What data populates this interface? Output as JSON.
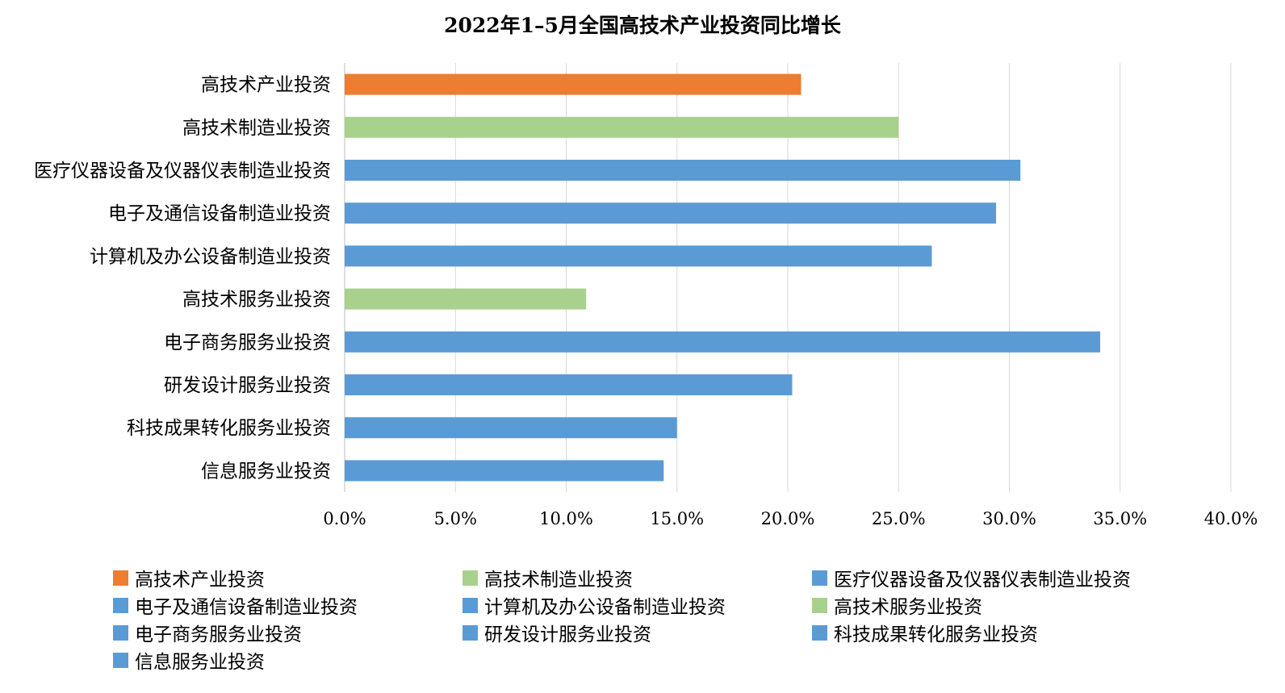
{
  "chart_data": {
    "type": "bar",
    "orientation": "horizontal",
    "title": "2022年1–5月全国高技术产业投资同比增长",
    "categories": [
      "高技术产业投资",
      "高技术制造业投资",
      "医疗仪器设备及仪器仪表制造业投资",
      "电子及通信设备制造业投资",
      "计算机及办公设备制造业投资",
      "高技术服务业投资",
      "电子商务服务业投资",
      "研发设计服务业投资",
      "科技成果转化服务业投资",
      "信息服务业投资"
    ],
    "values": [
      20.6,
      25.0,
      30.5,
      29.4,
      26.5,
      10.9,
      34.1,
      20.2,
      15.0,
      14.4
    ],
    "unit": "%",
    "colors": [
      "#ED7D31",
      "#A9D18E",
      "#5B9BD5",
      "#5B9BD5",
      "#5B9BD5",
      "#A9D18E",
      "#5B9BD5",
      "#5B9BD5",
      "#5B9BD5",
      "#5B9BD5"
    ],
    "xlim": [
      0,
      40
    ],
    "xticks": [
      "0.0%",
      "5.0%",
      "10.0%",
      "15.0%",
      "20.0%",
      "25.0%",
      "30.0%",
      "35.0%",
      "40.0%"
    ],
    "grid": "vertical",
    "legend_position": "bottom",
    "legend": [
      {
        "label": "高技术产业投资",
        "color": "#ED7D31"
      },
      {
        "label": "高技术制造业投资",
        "color": "#A9D18E"
      },
      {
        "label": "医疗仪器设备及仪器仪表制造业投资",
        "color": "#5B9BD5"
      },
      {
        "label": "电子及通信设备制造业投资",
        "color": "#5B9BD5"
      },
      {
        "label": "计算机及办公设备制造业投资",
        "color": "#5B9BD5"
      },
      {
        "label": "高技术服务业投资",
        "color": "#A9D18E"
      },
      {
        "label": "电子商务服务业投资",
        "color": "#5B9BD5"
      },
      {
        "label": "研发设计服务业投资",
        "color": "#5B9BD5"
      },
      {
        "label": "科技成果转化服务业投资",
        "color": "#5B9BD5"
      },
      {
        "label": "信息服务业投资",
        "color": "#5B9BD5"
      }
    ]
  }
}
